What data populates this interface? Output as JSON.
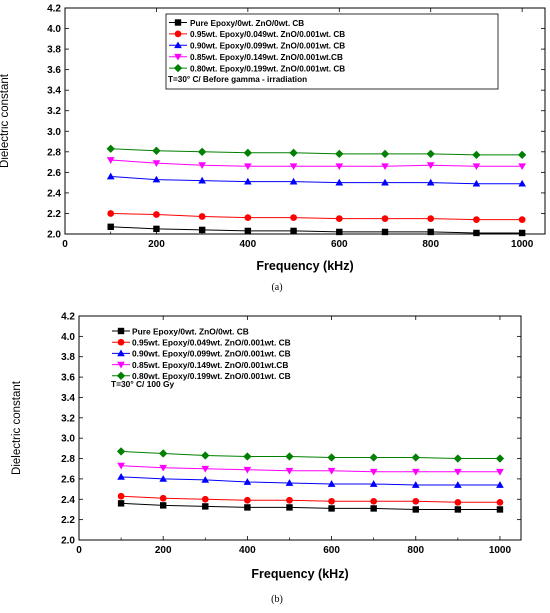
{
  "figure": {
    "caption_a": "(a)",
    "caption_b": "(b)"
  },
  "chart_data": [
    {
      "type": "line",
      "panel": "a",
      "xlabel": "Frequency (kHz)",
      "ylabel": "Dielectric constant",
      "xlim": [
        0,
        1050
      ],
      "ylim": [
        2.0,
        4.2
      ],
      "xticks": [
        0,
        200,
        400,
        600,
        800,
        1000
      ],
      "yticks": [
        2.0,
        2.2,
        2.4,
        2.6,
        2.8,
        3.0,
        3.2,
        3.4,
        3.6,
        3.8,
        4.0,
        4.2
      ],
      "grid": false,
      "legend_position": "top-right",
      "annotation": "T=30° C/ Before gamma - irradiation",
      "x": [
        100,
        200,
        300,
        400,
        500,
        600,
        700,
        800,
        900,
        1000
      ],
      "series": [
        {
          "name": "Pure Epoxy/0wt. ZnO/0wt. CB",
          "marker": "square",
          "color": "#000000",
          "values": [
            2.07,
            2.05,
            2.04,
            2.03,
            2.03,
            2.02,
            2.02,
            2.02,
            2.01,
            2.01
          ]
        },
        {
          "name": "0.95wt. Epoxy/0.049wt. ZnO/0.001wt. CB",
          "marker": "circle",
          "color": "#ff0000",
          "values": [
            2.2,
            2.19,
            2.17,
            2.16,
            2.16,
            2.15,
            2.15,
            2.15,
            2.14,
            2.14
          ]
        },
        {
          "name": "0.90wt. Epoxy/0.099wt. ZnO/0.001wt. CB",
          "marker": "triangle-up",
          "color": "#0000ff",
          "values": [
            2.56,
            2.53,
            2.52,
            2.51,
            2.51,
            2.5,
            2.5,
            2.5,
            2.49,
            2.49
          ]
        },
        {
          "name": "0.85wt. Epoxy/0.149wt. ZnO/0.001wt.CB",
          "marker": "triangle-down",
          "color": "#ff00ff",
          "values": [
            2.72,
            2.69,
            2.67,
            2.66,
            2.66,
            2.66,
            2.66,
            2.67,
            2.66,
            2.66
          ]
        },
        {
          "name": "0.80wt. Epoxy/0.199wt. ZnO/0.001wt. CB",
          "marker": "diamond",
          "color": "#008000",
          "values": [
            2.83,
            2.81,
            2.8,
            2.79,
            2.79,
            2.78,
            2.78,
            2.78,
            2.77,
            2.77
          ]
        }
      ]
    },
    {
      "type": "line",
      "panel": "b",
      "xlabel": "Frequency (kHz)",
      "ylabel": "Dielectric constant",
      "xlim": [
        0,
        1050
      ],
      "ylim": [
        2.0,
        4.2
      ],
      "xticks": [
        0,
        200,
        400,
        600,
        800,
        1000
      ],
      "yticks": [
        2.0,
        2.2,
        2.4,
        2.6,
        2.8,
        3.0,
        3.2,
        3.4,
        3.6,
        3.8,
        4.0,
        4.2
      ],
      "grid": false,
      "legend_position": "top-left",
      "annotation": "T=30° C/ 100 Gy",
      "x": [
        100,
        200,
        300,
        400,
        500,
        600,
        700,
        800,
        900,
        1000
      ],
      "series": [
        {
          "name": "Pure Epoxy/0wt. ZnO/0wt. CB",
          "marker": "square",
          "color": "#000000",
          "values": [
            2.36,
            2.34,
            2.33,
            2.32,
            2.32,
            2.31,
            2.31,
            2.3,
            2.3,
            2.3
          ]
        },
        {
          "name": "0.95wt. Epoxy/0.049wt. ZnO/0.001wt. CB",
          "marker": "circle",
          "color": "#ff0000",
          "values": [
            2.43,
            2.41,
            2.4,
            2.39,
            2.39,
            2.38,
            2.38,
            2.38,
            2.37,
            2.37
          ]
        },
        {
          "name": "0.90wt. Epoxy/0.099wt. ZnO/0.001wt. CB",
          "marker": "triangle-up",
          "color": "#0000ff",
          "values": [
            2.62,
            2.6,
            2.59,
            2.57,
            2.56,
            2.55,
            2.55,
            2.54,
            2.54,
            2.54
          ]
        },
        {
          "name": "0.85wt. Epoxy/0.149wt. ZnO/0.001wt.CB",
          "marker": "triangle-down",
          "color": "#ff00ff",
          "values": [
            2.73,
            2.71,
            2.7,
            2.69,
            2.68,
            2.68,
            2.67,
            2.67,
            2.67,
            2.67
          ]
        },
        {
          "name": "0.80wt. Epoxy/0.199wt. ZnO/0.001wt. CB",
          "marker": "diamond",
          "color": "#008000",
          "values": [
            2.87,
            2.85,
            2.83,
            2.82,
            2.82,
            2.81,
            2.81,
            2.81,
            2.8,
            2.8
          ]
        }
      ]
    }
  ]
}
